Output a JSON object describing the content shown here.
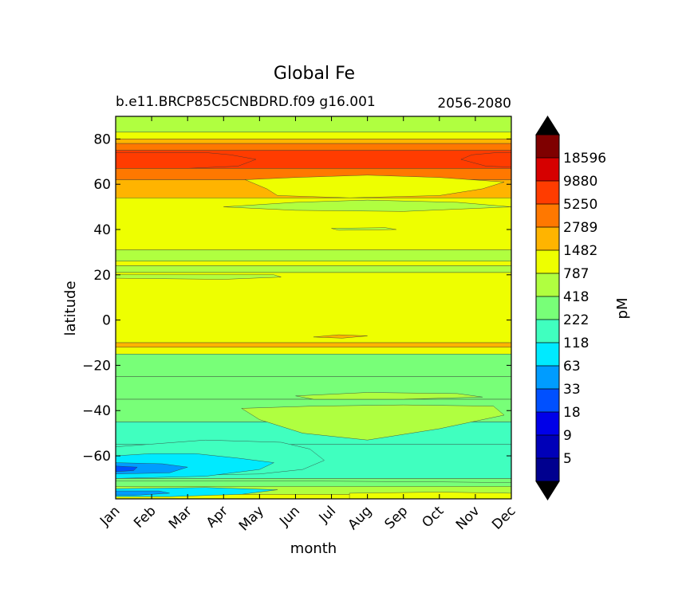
{
  "chart_data": {
    "type": "heatmap",
    "title": "Global Fe",
    "subtitle_left": "b.e11.BRCP85C5CNBDRD.f09 g16.001",
    "subtitle_right": "2056-2080",
    "xlabel": "month",
    "ylabel": "latitude",
    "x_ticks": [
      "Jan",
      "Feb",
      "Mar",
      "Apr",
      "May",
      "Jun",
      "Jul",
      "Aug",
      "Sep",
      "Oct",
      "Nov",
      "Dec"
    ],
    "y_ticks": [
      80,
      60,
      40,
      20,
      0,
      -20,
      -40,
      -60
    ],
    "ylim": [
      -79,
      90
    ],
    "colorbar": {
      "label": "pM",
      "tick_labels": [
        "5",
        "9",
        "18",
        "33",
        "63",
        "118",
        "222",
        "418",
        "787",
        "1482",
        "2789",
        "5250",
        "9880",
        "18596"
      ],
      "colors": [
        "#00008f",
        "#0000b8",
        "#0000e8",
        "#0050ff",
        "#009cff",
        "#00eaff",
        "#40ffbf",
        "#78ff78",
        "#b0ff40",
        "#eeff00",
        "#ffb400",
        "#ff7800",
        "#ff3c00",
        "#d60000",
        "#7f0000"
      ],
      "extend_low_color": "#000000",
      "extend_high_color": "#000000"
    },
    "bands": [
      {
        "lat_top": 90,
        "lat_bottom": 83,
        "level": 8
      },
      {
        "lat_top": 83,
        "lat_bottom": 80,
        "level": 9
      },
      {
        "lat_top": 80,
        "lat_bottom": 78,
        "level": 10
      },
      {
        "lat_top": 78,
        "lat_bottom": 75,
        "level": 11
      },
      {
        "lat_top": 75,
        "lat_bottom": 67,
        "level": 12
      },
      {
        "lat_top": 67,
        "lat_bottom": 62,
        "level": 11
      },
      {
        "lat_top": 62,
        "lat_bottom": 54,
        "level": 10
      },
      {
        "lat_top": 54,
        "lat_bottom": 31,
        "level": 9
      },
      {
        "lat_top": 31,
        "lat_bottom": 26,
        "level": 8
      },
      {
        "lat_top": 26,
        "lat_bottom": 24,
        "level": 9
      },
      {
        "lat_top": 24,
        "lat_bottom": 21,
        "level": 8
      },
      {
        "lat_top": 21,
        "lat_bottom": -10,
        "level": 9
      },
      {
        "lat_top": -10,
        "lat_bottom": -12,
        "level": 10
      },
      {
        "lat_top": -12,
        "lat_bottom": -15,
        "level": 9
      },
      {
        "lat_top": -15,
        "lat_bottom": -25,
        "level": 7
      },
      {
        "lat_top": -25,
        "lat_bottom": -35,
        "level": 7
      },
      {
        "lat_top": -35,
        "lat_bottom": -45,
        "level": 7
      },
      {
        "lat_top": -45,
        "lat_bottom": -55,
        "level": 6
      },
      {
        "lat_top": -55,
        "lat_bottom": -70,
        "level": 6
      },
      {
        "lat_top": -70,
        "lat_bottom": -73,
        "level": 7
      },
      {
        "lat_top": -73,
        "lat_bottom": -77,
        "level": 8
      },
      {
        "lat_top": -77,
        "lat_bottom": -79,
        "level": 9
      }
    ],
    "patches": [
      {
        "points": [
          [
            0.0,
            74
          ],
          [
            2.5,
            74
          ],
          [
            3.2,
            73
          ],
          [
            3.9,
            71
          ],
          [
            3.4,
            68
          ],
          [
            2.0,
            67
          ],
          [
            0.0,
            67
          ]
        ],
        "level": 12
      },
      {
        "points": [
          [
            12.0,
            74
          ],
          [
            10.6,
            74
          ],
          [
            9.9,
            73
          ],
          [
            9.6,
            71
          ],
          [
            10.3,
            68
          ],
          [
            12.0,
            67
          ]
        ],
        "level": 12
      },
      {
        "points": [
          [
            3.6,
            62
          ],
          [
            5.0,
            63
          ],
          [
            7.0,
            64
          ],
          [
            9.0,
            63
          ],
          [
            10.8,
            61
          ],
          [
            10.2,
            58
          ],
          [
            9.0,
            55
          ],
          [
            6.5,
            54
          ],
          [
            4.5,
            55
          ],
          [
            4.2,
            58
          ]
        ],
        "level": 9
      },
      {
        "points": [
          [
            3.0,
            50
          ],
          [
            5.0,
            52
          ],
          [
            7.0,
            53
          ],
          [
            9.5,
            52
          ],
          [
            11.0,
            50
          ],
          [
            8.0,
            48
          ],
          [
            5.0,
            48.5
          ]
        ],
        "level": 8
      },
      {
        "points": [
          [
            6.0,
            40.5
          ],
          [
            7.5,
            40.8
          ],
          [
            7.8,
            40
          ],
          [
            6.2,
            39.7
          ]
        ],
        "level": 8
      },
      {
        "points": [
          [
            0.0,
            20
          ],
          [
            4.4,
            20
          ],
          [
            4.6,
            19
          ],
          [
            3.0,
            18
          ],
          [
            0.0,
            18.5
          ]
        ],
        "level": 8
      },
      {
        "points": [
          [
            5.5,
            -7.5
          ],
          [
            6.2,
            -6.5
          ],
          [
            7.0,
            -7
          ],
          [
            6.3,
            -8
          ]
        ],
        "level": 10
      },
      {
        "points": [
          [
            5.0,
            -33.5
          ],
          [
            7.0,
            -32
          ],
          [
            9.5,
            -32.5
          ],
          [
            10.2,
            -34
          ],
          [
            8.0,
            -35
          ],
          [
            5.5,
            -35
          ]
        ],
        "level": 8
      },
      {
        "points": [
          [
            3.5,
            -39
          ],
          [
            5.5,
            -38
          ],
          [
            8.0,
            -37.5
          ],
          [
            10.5,
            -38
          ],
          [
            10.8,
            -42
          ],
          [
            9.0,
            -48
          ],
          [
            7.0,
            -53
          ],
          [
            5.2,
            -50
          ],
          [
            4.0,
            -44
          ]
        ],
        "level": 8
      },
      {
        "points": [
          [
            0.0,
            -56
          ],
          [
            2.5,
            -53
          ],
          [
            4.6,
            -54
          ],
          [
            5.4,
            -57
          ],
          [
            5.8,
            -62
          ],
          [
            5.2,
            -66
          ],
          [
            4.0,
            -68
          ],
          [
            0.0,
            -69
          ]
        ],
        "level": 6
      },
      {
        "points": [
          [
            0.0,
            -60
          ],
          [
            1.0,
            -59
          ],
          [
            2.2,
            -59
          ],
          [
            3.4,
            -61
          ],
          [
            4.4,
            -63
          ],
          [
            4.0,
            -66
          ],
          [
            2.5,
            -69
          ],
          [
            0.0,
            -70
          ]
        ],
        "level": 5
      },
      {
        "points": [
          [
            0.0,
            -63
          ],
          [
            1.3,
            -63.5
          ],
          [
            2.0,
            -65
          ],
          [
            1.5,
            -67.5
          ],
          [
            0.0,
            -68
          ]
        ],
        "level": 4
      },
      {
        "points": [
          [
            0.0,
            -64.5
          ],
          [
            0.6,
            -65
          ],
          [
            0.5,
            -66.5
          ],
          [
            0.0,
            -67
          ]
        ],
        "level": 3
      },
      {
        "points": [
          [
            12.0,
            -58
          ],
          [
            11.4,
            -60
          ],
          [
            11.0,
            -63
          ],
          [
            11.3,
            -67
          ],
          [
            12.0,
            -69
          ]
        ],
        "level": 5
      },
      {
        "points": [
          [
            12.0,
            -61
          ],
          [
            11.6,
            -63
          ],
          [
            11.7,
            -66
          ],
          [
            12.0,
            -67
          ]
        ],
        "level": 4
      },
      {
        "points": [
          [
            0.0,
            -71
          ],
          [
            3.0,
            -71
          ],
          [
            6.0,
            -71.2
          ],
          [
            9.0,
            -71.5
          ],
          [
            12.0,
            -72
          ],
          [
            12.0,
            -73.5
          ],
          [
            0.0,
            -73.5
          ]
        ],
        "level": 7
      },
      {
        "points": [
          [
            0.0,
            -74.5
          ],
          [
            2.5,
            -74
          ],
          [
            4.5,
            -75
          ],
          [
            3.5,
            -77
          ],
          [
            1.5,
            -78
          ],
          [
            0.0,
            -78
          ]
        ],
        "level": 5
      },
      {
        "points": [
          [
            0.0,
            -75.5
          ],
          [
            1.2,
            -75.5
          ],
          [
            1.5,
            -76.5
          ],
          [
            0.5,
            -77.5
          ],
          [
            0.0,
            -77.5
          ]
        ],
        "level": 4
      },
      {
        "points": [
          [
            6.5,
            -76.5
          ],
          [
            9.0,
            -76
          ],
          [
            11.0,
            -76.5
          ],
          [
            11.0,
            -79
          ],
          [
            6.5,
            -79
          ]
        ],
        "level": 9
      }
    ]
  }
}
